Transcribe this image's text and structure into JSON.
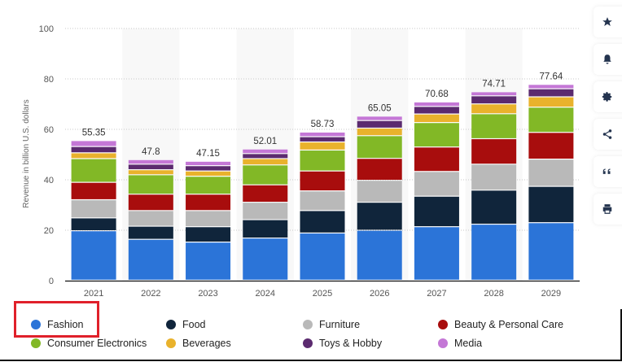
{
  "chart_data": {
    "type": "bar",
    "stacked": true,
    "title": "",
    "xlabel": "",
    "ylabel": "Revenue in billion U.S. dollars",
    "ylim": [
      0,
      100
    ],
    "yticks": [
      0,
      20,
      40,
      60,
      80,
      100
    ],
    "grid": true,
    "legend_position": "bottom",
    "categories": [
      "2021",
      "2022",
      "2023",
      "2024",
      "2025",
      "2026",
      "2027",
      "2028",
      "2029"
    ],
    "totals": [
      "55.35",
      "47.8",
      "47.15",
      "52.01",
      "58.73",
      "65.05",
      "70.68",
      "74.71",
      "77.64"
    ],
    "series": [
      {
        "name": "Fashion",
        "color": "#2b74d8",
        "values": [
          19.6,
          16.2,
          15.1,
          16.7,
          18.7,
          19.8,
          21.2,
          22.2,
          22.8
        ]
      },
      {
        "name": "Food",
        "color": "#10253b",
        "values": [
          5.1,
          5.2,
          6.1,
          7.3,
          8.9,
          11.1,
          12.1,
          13.5,
          14.4
        ]
      },
      {
        "name": "Furniture",
        "color": "#b9b9b9",
        "values": [
          7.2,
          6.2,
          6.4,
          6.9,
          7.8,
          8.7,
          9.8,
          10.3,
          10.8
        ]
      },
      {
        "name": "Beauty & Personal Care",
        "color": "#a80d0d",
        "values": [
          6.9,
          6.5,
          6.5,
          6.9,
          7.9,
          8.7,
          9.7,
          10.1,
          10.6
        ]
      },
      {
        "name": "Consumer Electronics",
        "color": "#82b826",
        "values": [
          9.4,
          7.7,
          7.1,
          7.9,
          8.3,
          9.0,
          9.7,
          9.9,
          10.0
        ]
      },
      {
        "name": "Beverages",
        "color": "#e9b22c",
        "values": [
          2.3,
          2.0,
          2.1,
          2.5,
          3.2,
          3.0,
          3.4,
          3.9,
          4.1
        ]
      },
      {
        "name": "Toys & Hobby",
        "color": "#5b2a6f",
        "values": [
          2.5,
          2.2,
          2.1,
          2.0,
          2.1,
          3.0,
          3.0,
          3.2,
          3.2
        ]
      },
      {
        "name": "Media",
        "color": "#c477d6",
        "values": [
          2.35,
          1.8,
          1.75,
          1.81,
          1.83,
          1.75,
          1.78,
          1.61,
          1.74
        ]
      }
    ]
  },
  "legend": {
    "items": [
      {
        "label": "Fashion",
        "color": "#2b74d8"
      },
      {
        "label": "Food",
        "color": "#10253b"
      },
      {
        "label": "Furniture",
        "color": "#b9b9b9"
      },
      {
        "label": "Beauty & Personal Care",
        "color": "#a80d0d"
      },
      {
        "label": "Consumer Electronics",
        "color": "#82b826"
      },
      {
        "label": "Beverages",
        "color": "#e9b22c"
      },
      {
        "label": "Toys & Hobby",
        "color": "#5b2a6f"
      },
      {
        "label": "Media",
        "color": "#c477d6"
      }
    ]
  },
  "sidebar": {
    "buttons": [
      {
        "icon": "star-icon"
      },
      {
        "icon": "bell-icon"
      },
      {
        "icon": "gear-icon"
      },
      {
        "icon": "share-icon"
      },
      {
        "icon": "quote-icon"
      },
      {
        "icon": "print-icon"
      }
    ]
  },
  "highlight": {
    "target": "Fashion",
    "color": "#e0202a"
  }
}
